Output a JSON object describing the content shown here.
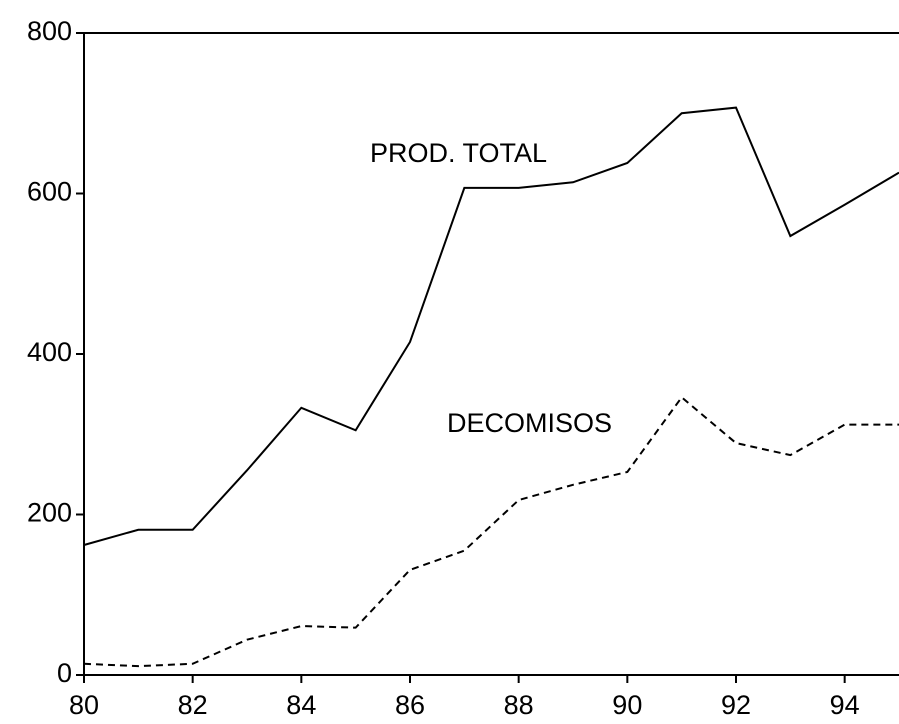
{
  "chart_data": {
    "type": "line",
    "x": [
      80,
      81,
      82,
      83,
      84,
      85,
      86,
      87,
      88,
      89,
      90,
      91,
      92,
      93,
      94,
      95
    ],
    "series": [
      {
        "name": "PROD. TOTAL",
        "color": "#000000",
        "dash": "solid",
        "values": [
          162,
          181,
          181,
          255,
          333,
          305,
          415,
          607,
          607,
          614,
          638,
          700,
          707,
          547,
          586,
          626
        ]
      },
      {
        "name": "DECOMISOS",
        "color": "#000000",
        "dash": "dashed",
        "values": [
          14,
          11,
          14,
          44,
          61,
          59,
          131,
          155,
          218,
          237,
          253,
          346,
          289,
          274,
          312,
          312
        ]
      }
    ],
    "xlim": [
      80,
      95
    ],
    "xticks": [
      80,
      82,
      84,
      86,
      88,
      90,
      92,
      94
    ],
    "ylim": [
      0,
      800
    ],
    "yticks": [
      0,
      200,
      400,
      600,
      800
    ],
    "grid": false
  }
}
